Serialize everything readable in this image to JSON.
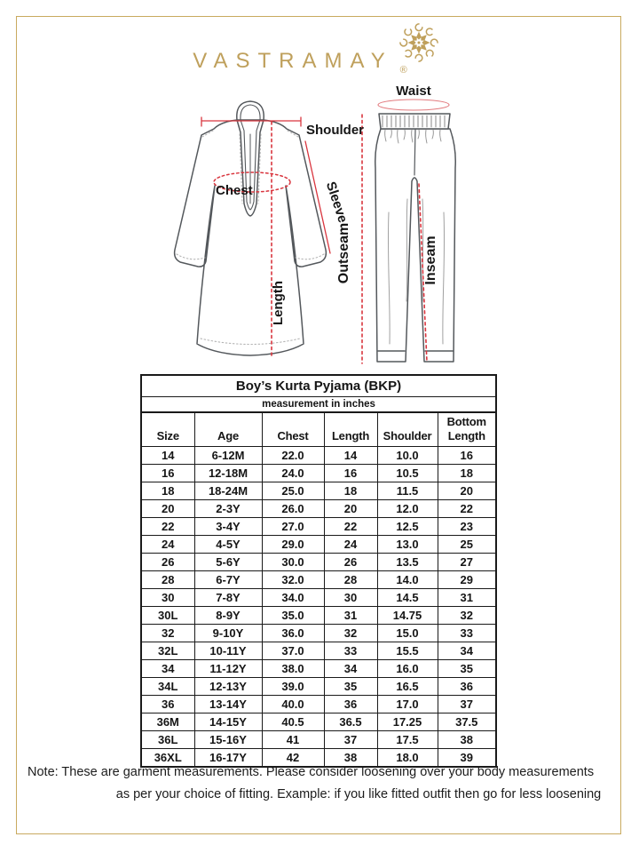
{
  "brand": {
    "name": "VASTRAMAY",
    "registered_mark": "®"
  },
  "diagram": {
    "kurta": {
      "shoulder": "Shoulder",
      "chest": "Chest",
      "sleeve": "Sleeve",
      "length": "Length"
    },
    "pyjama": {
      "waist": "Waist",
      "outseam": "Outseam",
      "inseam": "Inseam"
    }
  },
  "size_chart": {
    "title": "Boy’s Kurta Pyjama (BKP)",
    "subtitle": "measurement in inches",
    "columns": [
      "Size",
      "Age",
      "Chest",
      "Length",
      "Shoulder",
      "Bottom Length"
    ],
    "column_keys": [
      "size",
      "age",
      "chest",
      "length",
      "shoulder",
      "bottom-length"
    ],
    "rows": [
      [
        "14",
        "6-12M",
        "22.0",
        "14",
        "10.0",
        "16"
      ],
      [
        "16",
        "12-18M",
        "24.0",
        "16",
        "10.5",
        "18"
      ],
      [
        "18",
        "18-24M",
        "25.0",
        "18",
        "11.5",
        "20"
      ],
      [
        "20",
        "2-3Y",
        "26.0",
        "20",
        "12.0",
        "22"
      ],
      [
        "22",
        "3-4Y",
        "27.0",
        "22",
        "12.5",
        "23"
      ],
      [
        "24",
        "4-5Y",
        "29.0",
        "24",
        "13.0",
        "25"
      ],
      [
        "26",
        "5-6Y",
        "30.0",
        "26",
        "13.5",
        "27"
      ],
      [
        "28",
        "6-7Y",
        "32.0",
        "28",
        "14.0",
        "29"
      ],
      [
        "30",
        "7-8Y",
        "34.0",
        "30",
        "14.5",
        "31"
      ],
      [
        "30L",
        "8-9Y",
        "35.0",
        "31",
        "14.75",
        "32"
      ],
      [
        "32",
        "9-10Y",
        "36.0",
        "32",
        "15.0",
        "33"
      ],
      [
        "32L",
        "10-11Y",
        "37.0",
        "33",
        "15.5",
        "34"
      ],
      [
        "34",
        "11-12Y",
        "38.0",
        "34",
        "16.0",
        "35"
      ],
      [
        "34L",
        "12-13Y",
        "39.0",
        "35",
        "16.5",
        "36"
      ],
      [
        "36",
        "13-14Y",
        "40.0",
        "36",
        "17.0",
        "37"
      ],
      [
        "36M",
        "14-15Y",
        "40.5",
        "36.5",
        "17.25",
        "37.5"
      ],
      [
        "36L",
        "15-16Y",
        "41",
        "37",
        "17.5",
        "38"
      ],
      [
        "36XL",
        "16-17Y",
        "42",
        "38",
        "18.0",
        "39"
      ]
    ]
  },
  "note": {
    "line1": "Note: These are garment measurements. Please consider loosening over your body measurements",
    "line2": "as per your choice of fitting. Example: if you like fitted outfit then go for less loosening"
  },
  "colors": {
    "gold": "#bfa05c",
    "border_gold": "#c9aa5f",
    "annotation_red": "#d9353e",
    "waist_pink": "#e27a7e",
    "table_text": "#151515"
  }
}
